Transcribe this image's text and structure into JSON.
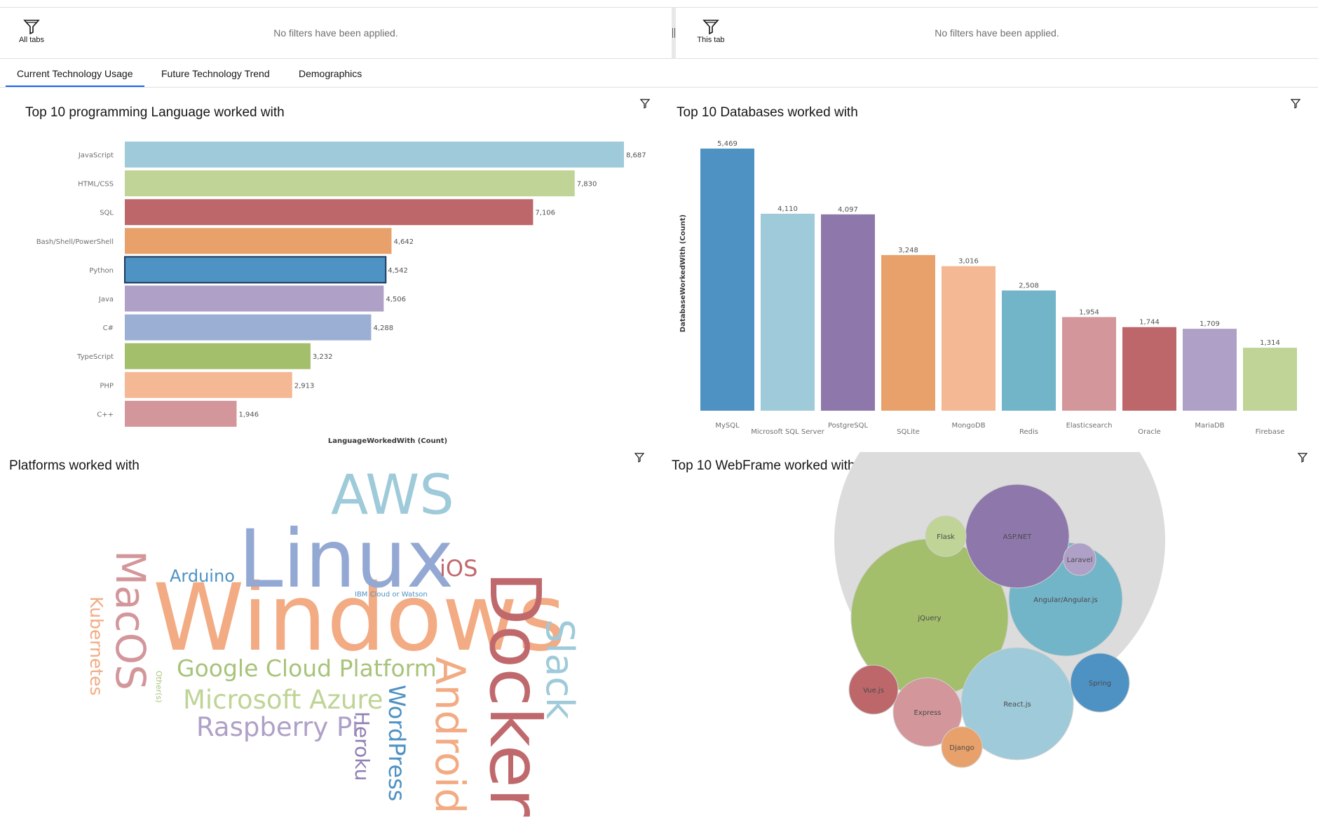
{
  "filter_bar": {
    "all_tabs_label": "All tabs",
    "this_tab_label": "This tab",
    "left_message": "No filters have been applied.",
    "right_message": "No filters have been applied."
  },
  "tabs": [
    {
      "label": "Current Technology Usage",
      "active": true
    },
    {
      "label": "Future Technology Trend",
      "active": false
    },
    {
      "label": "Demographics",
      "active": false
    }
  ],
  "widgets": {
    "languages_title": "Top 10 programming Language worked with",
    "databases_title": "Top 10 Databases worked with",
    "platforms_title": "Platforms worked with",
    "webframes_title": "Top 10 WebFrame worked with"
  },
  "chart_data": [
    {
      "type": "bar",
      "orientation": "horizontal",
      "title": "Top 10 programming Language worked with",
      "xlabel": "LanguageWorkedWith (Count)",
      "ylabel": "",
      "categories": [
        "JavaScript",
        "HTML/CSS",
        "SQL",
        "Bash/Shell/PowerShell",
        "Python",
        "Java",
        "C#",
        "TypeScript",
        "PHP",
        "C++"
      ],
      "values": [
        8687,
        7830,
        7106,
        4642,
        4542,
        4506,
        4288,
        3232,
        2913,
        1946
      ],
      "value_labels": [
        "8,687",
        "7,830",
        "7,106",
        "4,642",
        "4,542",
        "4,506",
        "4,288",
        "3,232",
        "2,913",
        "1,946"
      ],
      "colors": [
        "#9ecad9",
        "#bfd496",
        "#bd676b",
        "#e8a16a",
        "#4e93c4",
        "#afa0c7",
        "#9aafd3",
        "#a3bf6b",
        "#f4b894",
        "#d3969a"
      ],
      "highlighted": "Python",
      "xlim": [
        0,
        8687
      ]
    },
    {
      "type": "bar",
      "orientation": "vertical",
      "title": "Top 10 Databases worked with",
      "xlabel": "",
      "ylabel": "DatabaseWorkedWith (Count)",
      "categories": [
        "MySQL",
        "Microsoft SQL Server",
        "PostgreSQL",
        "SQLite",
        "MongoDB",
        "Redis",
        "Elasticsearch",
        "Oracle",
        "MariaDB",
        "Firebase"
      ],
      "values": [
        5469,
        4110,
        4097,
        3248,
        3016,
        2508,
        1954,
        1744,
        1709,
        1314
      ],
      "value_labels": [
        "5,469",
        "4,110",
        "4,097",
        "3,248",
        "3,016",
        "2,508",
        "1,954",
        "1,744",
        "1,709",
        "1,314"
      ],
      "colors": [
        "#4e92c3",
        "#9ecad9",
        "#8e78ab",
        "#e8a16a",
        "#f4b894",
        "#72b4c8",
        "#d3969a",
        "#bd676b",
        "#afa0c7",
        "#bfd496"
      ],
      "ylim": [
        0,
        5469
      ]
    },
    {
      "type": "wordcloud",
      "title": "Platforms worked with",
      "words": [
        {
          "text": "Windows",
          "color": "#f2ab83"
        },
        {
          "text": "Linux",
          "color": "#94a8d4"
        },
        {
          "text": "Docker",
          "color": "#c0696d"
        },
        {
          "text": "AWS",
          "color": "#9ecad9"
        },
        {
          "text": "Android",
          "color": "#f2ab83"
        },
        {
          "text": "MacOS",
          "color": "#d3969a"
        },
        {
          "text": "Slack",
          "color": "#9ecad9"
        },
        {
          "text": "Google Cloud Platform",
          "color": "#a8c37a"
        },
        {
          "text": "Microsoft Azure",
          "color": "#bfd496"
        },
        {
          "text": "Raspberry Pi",
          "color": "#afa0c7"
        },
        {
          "text": "WordPress",
          "color": "#4e92c3"
        },
        {
          "text": "Kubernetes",
          "color": "#f2ab83"
        },
        {
          "text": "iOS",
          "color": "#c0696d"
        },
        {
          "text": "Arduino",
          "color": "#4e92c3"
        },
        {
          "text": "Heroku",
          "color": "#9080b3"
        },
        {
          "text": "IBM Cloud or Watson",
          "color": "#4e92c3"
        },
        {
          "text": "Other(s)",
          "color": "#a8c37a"
        }
      ]
    },
    {
      "type": "bubble",
      "title": "Top 10 WebFrame worked with",
      "items": [
        {
          "label": "jQuery",
          "color": "#a3bf6b"
        },
        {
          "label": "React.js",
          "color": "#9ecad9"
        },
        {
          "label": "Angular/Angular.js",
          "color": "#72b4c8"
        },
        {
          "label": "ASP.NET",
          "color": "#8e78ab"
        },
        {
          "label": "Express",
          "color": "#d3969a"
        },
        {
          "label": "Spring",
          "color": "#4e92c3"
        },
        {
          "label": "Vue.js",
          "color": "#bd676b"
        },
        {
          "label": "Flask",
          "color": "#bfd496"
        },
        {
          "label": "Django",
          "color": "#e8a16a"
        },
        {
          "label": "Laravel",
          "color": "#afa0c7"
        }
      ]
    }
  ]
}
